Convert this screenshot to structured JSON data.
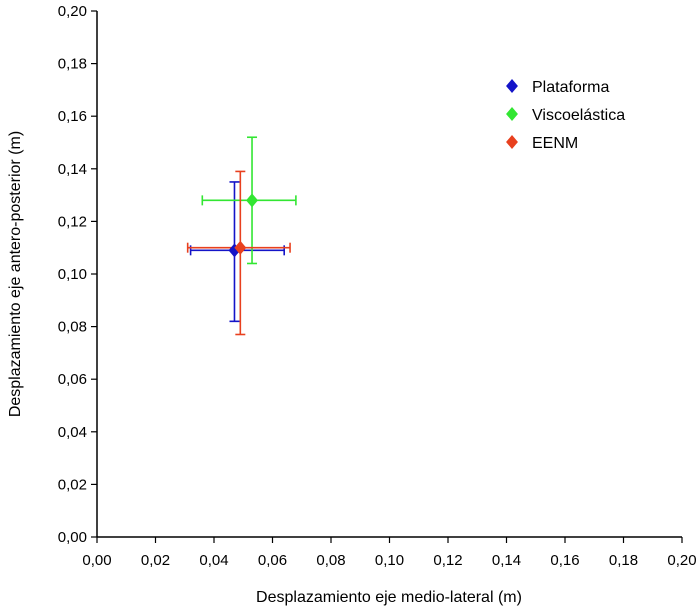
{
  "chart_data": {
    "type": "scatter",
    "title": "",
    "xlabel": "Desplazamiento eje medio-lateral (m)",
    "ylabel": "Desplazamiento eje antero-posterior (m)",
    "xlim": [
      0,
      0.2
    ],
    "ylim": [
      0,
      0.2
    ],
    "x_ticks": [
      "0,00",
      "0,02",
      "0,04",
      "0,06",
      "0,08",
      "0,10",
      "0,12",
      "0,14",
      "0,16",
      "0,18",
      "0,20"
    ],
    "y_ticks": [
      "0,00",
      "0,02",
      "0,04",
      "0,06",
      "0,08",
      "0,10",
      "0,12",
      "0,14",
      "0,16",
      "0,18",
      "0,20"
    ],
    "grid": false,
    "legend_position": "top-right",
    "series": [
      {
        "name": "Plataforma",
        "color": "#1414c8",
        "marker": "diamond",
        "x": 0.047,
        "y": 0.109,
        "x_err": [
          0.032,
          0.064
        ],
        "y_err": [
          0.082,
          0.135
        ]
      },
      {
        "name": "Viscoelástica",
        "color": "#32e632",
        "marker": "diamond",
        "x": 0.053,
        "y": 0.128,
        "x_err": [
          0.036,
          0.068
        ],
        "y_err": [
          0.104,
          0.152
        ]
      },
      {
        "name": "EENM",
        "color": "#e8401e",
        "marker": "diamond",
        "x": 0.049,
        "y": 0.11,
        "x_err": [
          0.031,
          0.066
        ],
        "y_err": [
          0.077,
          0.139
        ]
      }
    ]
  }
}
